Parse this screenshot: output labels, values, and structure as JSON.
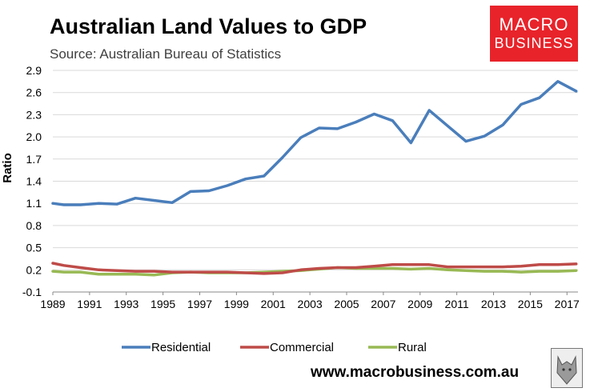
{
  "header": {
    "title": "Australian Land Values to GDP",
    "subtitle": "Source: Australian Bureau of Statistics"
  },
  "logo": {
    "line1": "MACRO",
    "line2": "BUSINESS",
    "color": "#e8232a"
  },
  "footer": {
    "website": "www.macrobusiness.com.au"
  },
  "chart_data": {
    "type": "line",
    "title": "Australian Land Values to GDP",
    "subtitle": "Source: Australian Bureau of Statistics",
    "xlabel": "",
    "ylabel": "Ratio",
    "ylim": [
      -0.1,
      2.9
    ],
    "yticks": [
      -0.1,
      0.2,
      0.5,
      0.8,
      1.1,
      1.4,
      1.7,
      2.0,
      2.3,
      2.6,
      2.9
    ],
    "ytick_labels": [
      "-0.1",
      "0.2",
      "0.5",
      "0.8",
      "1.1",
      "1.4",
      "1.7",
      "2.0",
      "2.3",
      "2.6",
      "2.9"
    ],
    "xlim": [
      1989,
      2017.6
    ],
    "xticks": [
      1989,
      1991,
      1993,
      1995,
      1997,
      1999,
      2001,
      2003,
      2005,
      2007,
      2009,
      2011,
      2013,
      2015,
      2017
    ],
    "grid": "horizontal",
    "legend_position": "bottom",
    "series": [
      {
        "name": "Residential",
        "color": "#4a7ebb",
        "x": [
          1989,
          1989.6,
          1990.5,
          1991.5,
          1992.5,
          1993.5,
          1994.5,
          1995.5,
          1996.5,
          1997.5,
          1998.5,
          1999.5,
          2000.5,
          2001.5,
          2002.5,
          2003.5,
          2004.5,
          2005.5,
          2006.5,
          2007.5,
          2008.5,
          2009.5,
          2010.5,
          2011.5,
          2012.5,
          2013.5,
          2014.5,
          2015.5,
          2016.5,
          2017.5
        ],
        "y": [
          1.1,
          1.08,
          1.08,
          1.1,
          1.09,
          1.17,
          1.14,
          1.11,
          1.26,
          1.27,
          1.34,
          1.43,
          1.47,
          1.72,
          1.99,
          2.12,
          2.11,
          2.2,
          2.31,
          2.22,
          1.92,
          2.36,
          2.15,
          1.94,
          2.01,
          2.16,
          2.44,
          2.53,
          2.75,
          2.62
        ]
      },
      {
        "name": "Commercial",
        "color": "#be4b48",
        "x": [
          1989,
          1989.6,
          1990.5,
          1991.5,
          1992.5,
          1993.5,
          1994.5,
          1995.5,
          1996.5,
          1997.5,
          1998.5,
          1999.5,
          2000.5,
          2001.5,
          2002.5,
          2003.5,
          2004.5,
          2005.5,
          2006.5,
          2007.5,
          2008.5,
          2009.5,
          2010.5,
          2011.5,
          2012.5,
          2013.5,
          2014.5,
          2015.5,
          2016.5,
          2017.5
        ],
        "y": [
          0.29,
          0.26,
          0.23,
          0.2,
          0.19,
          0.18,
          0.18,
          0.17,
          0.17,
          0.17,
          0.17,
          0.16,
          0.15,
          0.16,
          0.2,
          0.22,
          0.23,
          0.23,
          0.25,
          0.27,
          0.27,
          0.27,
          0.24,
          0.24,
          0.24,
          0.24,
          0.25,
          0.27,
          0.27,
          0.28
        ]
      },
      {
        "name": "Rural",
        "color": "#98b954",
        "x": [
          1989,
          1989.6,
          1990.5,
          1991.5,
          1992.5,
          1993.5,
          1994.5,
          1995.5,
          1996.5,
          1997.5,
          1998.5,
          1999.5,
          2000.5,
          2001.5,
          2002.5,
          2003.5,
          2004.5,
          2005.5,
          2006.5,
          2007.5,
          2008.5,
          2009.5,
          2010.5,
          2011.5,
          2012.5,
          2013.5,
          2014.5,
          2015.5,
          2016.5,
          2017.5
        ],
        "y": [
          0.18,
          0.17,
          0.17,
          0.14,
          0.14,
          0.14,
          0.13,
          0.16,
          0.17,
          0.16,
          0.16,
          0.16,
          0.17,
          0.18,
          0.19,
          0.21,
          0.23,
          0.22,
          0.22,
          0.22,
          0.21,
          0.22,
          0.2,
          0.19,
          0.18,
          0.18,
          0.17,
          0.18,
          0.18,
          0.19
        ]
      }
    ]
  }
}
